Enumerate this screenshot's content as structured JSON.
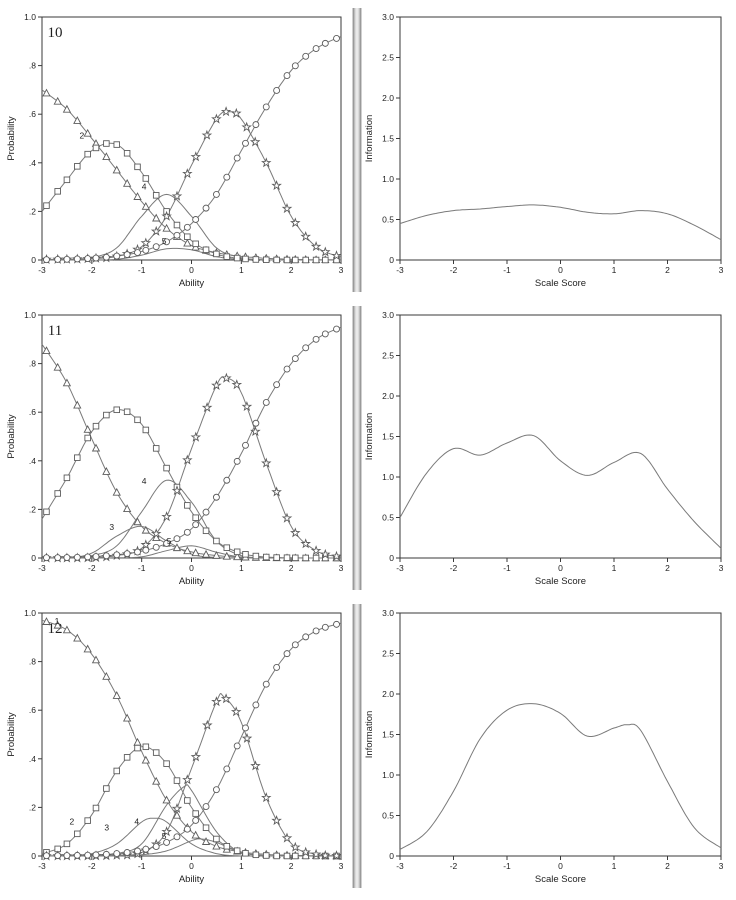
{
  "colors": {
    "axis": "#3a3a3a",
    "text": "#1f1f1f",
    "line": "#7a7a7a",
    "marker": "#5c5c5c",
    "separator": "#8f8f8f",
    "background": "#ffffff"
  },
  "chart_data": [
    {
      "id": "item10-category-curves",
      "type": "line",
      "panel_label": "10",
      "xlabel": "Ability",
      "ylabel": "Probability",
      "xlim": [
        -3,
        3
      ],
      "ylim": [
        0,
        1
      ],
      "xticks": [
        -3,
        -2,
        -1,
        0,
        1,
        2,
        3
      ],
      "xtick_labels": [
        "-3",
        "-2",
        "-1",
        "0",
        "1",
        "2",
        "3"
      ],
      "yticks": [
        0,
        0.2,
        0.4,
        0.6,
        0.8,
        1.0
      ],
      "ytick_labels": [
        "0",
        ".2",
        ".4",
        ".6",
        ".8",
        "1.0"
      ],
      "series": [
        {
          "name": "category-1",
          "marker": "triangle",
          "x": [
            -3,
            -2.5,
            -2,
            -1.5,
            -1,
            -0.5,
            0,
            0.5,
            1,
            1.5,
            2,
            2.5,
            3
          ],
          "y": [
            0.7,
            0.62,
            0.5,
            0.37,
            0.24,
            0.13,
            0.06,
            0.03,
            0.015,
            0.007,
            0.003,
            0.001,
            0.001
          ]
        },
        {
          "name": "category-2",
          "marker": "square",
          "x": [
            -3,
            -2.5,
            -2,
            -1.5,
            -1,
            -0.5,
            0,
            0.5,
            1,
            1.5,
            2,
            2.5,
            3
          ],
          "y": [
            0.2,
            0.33,
            0.45,
            0.475,
            0.36,
            0.2,
            0.08,
            0.025,
            0.006,
            0.001,
            0,
            0,
            0
          ]
        },
        {
          "name": "category-4-curve",
          "marker": null,
          "x": [
            -3,
            -2.5,
            -2,
            -1.5,
            -1,
            -0.5,
            0,
            0.5,
            1,
            1.5,
            2,
            2.5,
            3
          ],
          "y": [
            0,
            0,
            0.01,
            0.05,
            0.18,
            0.27,
            0.18,
            0.05,
            0.01,
            0,
            0,
            0,
            0
          ]
        },
        {
          "name": "category-5-curve",
          "marker": null,
          "x": [
            -3,
            -2.5,
            -2,
            -1.5,
            -1,
            -0.5,
            0,
            0.5,
            1,
            1.5,
            2,
            2.5,
            3
          ],
          "y": [
            0,
            0,
            0,
            0.003,
            0.02,
            0.046,
            0.042,
            0.014,
            0.002,
            0,
            0,
            0,
            0
          ]
        },
        {
          "name": "category-star",
          "marker": "star",
          "x": [
            -3,
            -2.5,
            -2,
            -1.5,
            -1,
            -0.5,
            0,
            0.5,
            0.75,
            1,
            1.5,
            2,
            2.5,
            3
          ],
          "y": [
            0.002,
            0.003,
            0.006,
            0.015,
            0.055,
            0.18,
            0.39,
            0.58,
            0.61,
            0.58,
            0.4,
            0.18,
            0.055,
            0.012
          ]
        },
        {
          "name": "category-top",
          "marker": "circle",
          "x": [
            -3,
            -2.5,
            -2,
            -1.5,
            -1,
            -0.5,
            0,
            0.5,
            1,
            1.5,
            2,
            2.5,
            3
          ],
          "y": [
            0.001,
            0.003,
            0.007,
            0.016,
            0.035,
            0.075,
            0.15,
            0.27,
            0.45,
            0.63,
            0.78,
            0.87,
            0.92
          ]
        }
      ],
      "annotations": [
        {
          "label": "2",
          "x": -2.2,
          "y": 0.5
        },
        {
          "label": "4",
          "x": -0.95,
          "y": 0.29
        },
        {
          "label": "5",
          "x": -0.55,
          "y": 0.065
        }
      ]
    },
    {
      "id": "item10-information",
      "type": "line",
      "panel_label": "",
      "xlabel": "Scale Score",
      "ylabel": "Information",
      "xlim": [
        -3,
        3
      ],
      "ylim": [
        0,
        3
      ],
      "xticks": [
        -3,
        -2,
        -1,
        0,
        1,
        2,
        3
      ],
      "xtick_labels": [
        "-3",
        "-2",
        "-1",
        "0",
        "1",
        "2",
        "3"
      ],
      "yticks": [
        0,
        0.5,
        1.0,
        1.5,
        2.0,
        2.5,
        3.0
      ],
      "ytick_labels": [
        "0",
        "0.5",
        "1.0",
        "1.5",
        "2.0",
        "2.5",
        "3.0"
      ],
      "series": [
        {
          "name": "information",
          "marker": null,
          "x": [
            -3,
            -2.5,
            -2,
            -1.5,
            -1,
            -0.5,
            0,
            0.5,
            1,
            1.5,
            2,
            2.5,
            3
          ],
          "y": [
            0.45,
            0.55,
            0.61,
            0.63,
            0.66,
            0.68,
            0.65,
            0.59,
            0.57,
            0.61,
            0.57,
            0.43,
            0.25
          ]
        }
      ],
      "annotations": []
    },
    {
      "id": "item11-category-curves",
      "type": "line",
      "panel_label": "11",
      "xlabel": "Ability",
      "ylabel": "Probability",
      "xlim": [
        -3,
        3
      ],
      "ylim": [
        0,
        1
      ],
      "xticks": [
        -3,
        -2,
        -1,
        0,
        1,
        2,
        3
      ],
      "xtick_labels": [
        "-3",
        "-2",
        "-1",
        "0",
        "1",
        "2",
        "3"
      ],
      "yticks": [
        0,
        0.2,
        0.4,
        0.6,
        0.8,
        1.0
      ],
      "ytick_labels": [
        "0",
        ".2",
        ".4",
        ".6",
        ".8",
        "1.0"
      ],
      "series": [
        {
          "name": "category-1",
          "marker": "triangle",
          "x": [
            -3,
            -2.5,
            -2,
            -1.5,
            -1,
            -0.5,
            0,
            0.5,
            1,
            1.5,
            2,
            2.5,
            3
          ],
          "y": [
            0.88,
            0.72,
            0.49,
            0.27,
            0.13,
            0.06,
            0.025,
            0.01,
            0.004,
            0.001,
            0,
            0,
            0
          ]
        },
        {
          "name": "category-2",
          "marker": "square",
          "x": [
            -3,
            -2.5,
            -2,
            -1.5,
            -1,
            -0.5,
            0,
            0.5,
            1,
            1.5,
            2,
            2.5,
            3
          ],
          "y": [
            0.16,
            0.33,
            0.52,
            0.61,
            0.55,
            0.37,
            0.19,
            0.07,
            0.02,
            0.004,
            0.001,
            0,
            0
          ]
        },
        {
          "name": "category-3-curve",
          "marker": null,
          "x": [
            -3,
            -2.5,
            -2,
            -1.5,
            -1,
            -0.5,
            0,
            0.5,
            1,
            1.5,
            2,
            2.5,
            3
          ],
          "y": [
            0,
            0,
            0.02,
            0.09,
            0.13,
            0.07,
            0.016,
            0.002,
            0,
            0,
            0,
            0,
            0
          ]
        },
        {
          "name": "category-4-curve",
          "marker": null,
          "x": [
            -3,
            -2.5,
            -2,
            -1.5,
            -1,
            -0.5,
            0,
            0.5,
            1,
            1.5,
            2,
            2.5,
            3
          ],
          "y": [
            0,
            0,
            0.01,
            0.05,
            0.19,
            0.32,
            0.23,
            0.07,
            0.01,
            0,
            0,
            0,
            0
          ]
        },
        {
          "name": "category-5-curve",
          "marker": null,
          "x": [
            -3,
            -2.5,
            -2,
            -1.5,
            -1,
            -0.5,
            0,
            0.5,
            1,
            1.5,
            2,
            2.5,
            3
          ],
          "y": [
            0,
            0,
            0,
            0.001,
            0.005,
            0.03,
            0.05,
            0.024,
            0.003,
            0,
            0,
            0,
            0
          ]
        },
        {
          "name": "category-star",
          "marker": "star",
          "x": [
            -3,
            -2.5,
            -2,
            -1.5,
            -1,
            -0.5,
            0,
            0.5,
            0.7,
            1,
            1.5,
            2,
            2.5,
            3
          ],
          "y": [
            0,
            0,
            0.001,
            0.01,
            0.04,
            0.17,
            0.45,
            0.71,
            0.74,
            0.68,
            0.39,
            0.13,
            0.03,
            0.004
          ]
        },
        {
          "name": "category-top",
          "marker": "circle",
          "x": [
            -3,
            -2.5,
            -2,
            -1.5,
            -1,
            -0.5,
            0,
            0.5,
            1,
            1.5,
            2,
            2.5,
            3
          ],
          "y": [
            0.001,
            0.002,
            0.005,
            0.013,
            0.028,
            0.06,
            0.12,
            0.25,
            0.43,
            0.64,
            0.8,
            0.9,
            0.95
          ]
        }
      ],
      "annotations": [
        {
          "label": "3",
          "x": -1.6,
          "y": 0.115
        },
        {
          "label": "4",
          "x": -0.95,
          "y": 0.305
        },
        {
          "label": "5",
          "x": -0.45,
          "y": 0.058
        }
      ]
    },
    {
      "id": "item11-information",
      "type": "line",
      "panel_label": "",
      "xlabel": "Scale Score",
      "ylabel": "Information",
      "xlim": [
        -3,
        3
      ],
      "ylim": [
        0,
        3
      ],
      "xticks": [
        -3,
        -2,
        -1,
        0,
        1,
        2,
        3
      ],
      "xtick_labels": [
        "-3",
        "-2",
        "-1",
        "0",
        "1",
        "2",
        "3"
      ],
      "yticks": [
        0,
        0.5,
        1.0,
        1.5,
        2.0,
        2.5,
        3.0
      ],
      "ytick_labels": [
        "0",
        "0.5",
        "1.0",
        "1.5",
        "2.0",
        "2.5",
        "3.0"
      ],
      "series": [
        {
          "name": "information",
          "marker": null,
          "x": [
            -3,
            -2.5,
            -2,
            -1.5,
            -1,
            -0.5,
            0,
            0.5,
            1,
            1.5,
            2,
            2.5,
            3
          ],
          "y": [
            0.5,
            1.05,
            1.35,
            1.27,
            1.42,
            1.51,
            1.2,
            1.02,
            1.18,
            1.29,
            0.85,
            0.45,
            0.12
          ]
        }
      ],
      "annotations": []
    },
    {
      "id": "item12-category-curves",
      "type": "line",
      "panel_label": "12",
      "xlabel": "Ability",
      "ylabel": "Probability",
      "xlim": [
        -3,
        3
      ],
      "ylim": [
        0,
        1
      ],
      "xticks": [
        -3,
        -2,
        -1,
        0,
        1,
        2,
        3
      ],
      "xtick_labels": [
        "-3",
        "-2",
        "-1",
        "0",
        "1",
        "2",
        "3"
      ],
      "yticks": [
        0,
        0.2,
        0.4,
        0.6,
        0.8,
        1.0
      ],
      "ytick_labels": [
        "0",
        ".2",
        ".4",
        ".6",
        ".8",
        "1.0"
      ],
      "series": [
        {
          "name": "category-1",
          "marker": "triangle",
          "x": [
            -3,
            -2.5,
            -2,
            -1.5,
            -1,
            -0.5,
            0,
            0.5,
            1,
            1.5,
            2,
            2.5,
            3
          ],
          "y": [
            0.97,
            0.93,
            0.83,
            0.66,
            0.43,
            0.23,
            0.1,
            0.04,
            0.017,
            0.007,
            0.003,
            0.001,
            0
          ]
        },
        {
          "name": "category-2",
          "marker": "square",
          "x": [
            -3,
            -2.5,
            -2,
            -1.5,
            -1,
            -0.5,
            0,
            0.5,
            1,
            1.5,
            2,
            2.5,
            3
          ],
          "y": [
            0.01,
            0.05,
            0.17,
            0.35,
            0.45,
            0.38,
            0.2,
            0.07,
            0.016,
            0.002,
            0,
            0,
            0
          ]
        },
        {
          "name": "category-3-curve",
          "marker": null,
          "x": [
            -3,
            -2.5,
            -2,
            -1.5,
            -1,
            -0.75,
            -0.5,
            0,
            0.5,
            1,
            1.5,
            2,
            2.5,
            3
          ],
          "y": [
            0,
            0,
            0.01,
            0.05,
            0.14,
            0.155,
            0.14,
            0.05,
            0.01,
            0,
            0,
            0,
            0,
            0
          ]
        },
        {
          "name": "category-4-curve",
          "marker": null,
          "x": [
            -3,
            -2.5,
            -2,
            -1.5,
            -1,
            -0.5,
            -0.15,
            0,
            0.5,
            1,
            1.5,
            2,
            2.5,
            3
          ],
          "y": [
            0,
            0,
            0,
            0.01,
            0.05,
            0.21,
            0.285,
            0.27,
            0.1,
            0.011,
            0,
            0,
            0,
            0
          ]
        },
        {
          "name": "category-5-curve",
          "marker": null,
          "x": [
            -3,
            -2.5,
            -2,
            -1.5,
            -1,
            -0.5,
            0,
            0.2,
            0.5,
            1,
            1.5,
            2,
            2.5,
            3
          ],
          "y": [
            0,
            0,
            0,
            0,
            0.005,
            0.021,
            0.063,
            0.07,
            0.056,
            0.014,
            0.001,
            0,
            0,
            0
          ]
        },
        {
          "name": "category-star",
          "marker": "star",
          "x": [
            -3,
            -2.5,
            -2,
            -1.5,
            -1,
            -0.5,
            0,
            0.5,
            0.65,
            1,
            1.5,
            2,
            2.5,
            3
          ],
          "y": [
            0,
            0,
            0,
            0.003,
            0.015,
            0.1,
            0.36,
            0.635,
            0.655,
            0.55,
            0.24,
            0.052,
            0.007,
            0.001
          ]
        },
        {
          "name": "category-top",
          "marker": "circle",
          "x": [
            -3,
            -2.5,
            -2,
            -1.5,
            -1,
            -0.5,
            0,
            0.5,
            1,
            1.5,
            2,
            2.5,
            3
          ],
          "y": [
            0.001,
            0.002,
            0.004,
            0.01,
            0.024,
            0.056,
            0.127,
            0.273,
            0.49,
            0.707,
            0.852,
            0.926,
            0.958
          ]
        }
      ],
      "annotations": [
        {
          "label": "1",
          "x": -2.7,
          "y": 0.955
        },
        {
          "label": "2",
          "x": -2.4,
          "y": 0.13
        },
        {
          "label": "3",
          "x": -1.7,
          "y": 0.105
        },
        {
          "label": "4",
          "x": -1.1,
          "y": 0.13
        },
        {
          "label": "5",
          "x": -0.55,
          "y": 0.07
        }
      ]
    },
    {
      "id": "item12-information",
      "type": "line",
      "panel_label": "",
      "xlabel": "Scale Score",
      "ylabel": "Information",
      "xlim": [
        -3,
        3
      ],
      "ylim": [
        0,
        3
      ],
      "xticks": [
        -3,
        -2,
        -1,
        0,
        1,
        2,
        3
      ],
      "xtick_labels": [
        "-3",
        "-2",
        "-1",
        "0",
        "1",
        "2",
        "3"
      ],
      "yticks": [
        0,
        0.5,
        1.0,
        1.5,
        2.0,
        2.5,
        3.0
      ],
      "ytick_labels": [
        "0",
        "0.5",
        "1.0",
        "1.5",
        "2.0",
        "2.5",
        "3.0"
      ],
      "series": [
        {
          "name": "information",
          "marker": null,
          "x": [
            -3,
            -2.5,
            -2,
            -1.5,
            -1,
            -0.5,
            0,
            0.5,
            1,
            1.25,
            1.5,
            2,
            2.5,
            3
          ],
          "y": [
            0.08,
            0.3,
            0.8,
            1.45,
            1.8,
            1.88,
            1.76,
            1.48,
            1.58,
            1.62,
            1.55,
            0.92,
            0.35,
            0.1
          ]
        }
      ],
      "annotations": []
    }
  ]
}
